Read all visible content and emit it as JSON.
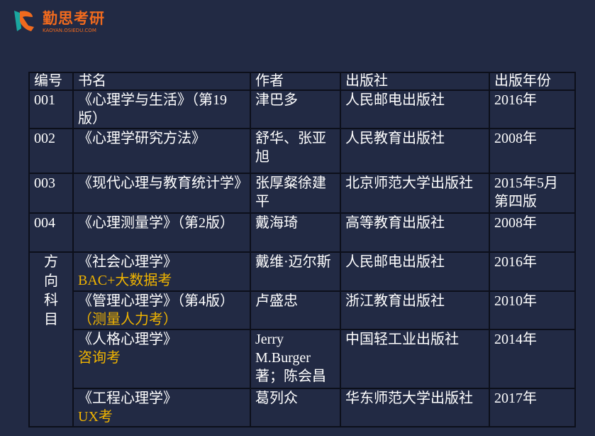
{
  "logo": {
    "name": "勤思考研",
    "url_text": "KAOYAN.OSIEDU.COM"
  },
  "colors": {
    "background": "#222a44",
    "highlight": "#f0b400",
    "logo": "#f06a1e"
  },
  "table": {
    "headers": [
      "编号",
      "书名",
      "作者",
      "出版社",
      "出版年份"
    ],
    "rows": [
      {
        "id": "001",
        "title": "《心理学与生活》（第19版）",
        "note": "",
        "author": "津巴多",
        "publisher": "人民邮电出版社",
        "year": "2016年"
      },
      {
        "id": "002",
        "title": "《心理学研究方法》",
        "note": "",
        "author": "舒华、张亚旭",
        "publisher": "人民教育出版社",
        "year": "2008年"
      },
      {
        "id": "003",
        "title": "《现代心理与教育统计学》",
        "note": "",
        "author": "张厚粲徐建平",
        "publisher": "北京师范大学出版社",
        "year": "2015年5月第四版"
      },
      {
        "id": "004",
        "title": "《心理测量学》（第2版）",
        "note": "",
        "author": "戴海琦",
        "publisher": "高等教育出版社",
        "year": "2008年"
      }
    ],
    "direction_label": "方向科目",
    "direction_rows": [
      {
        "title": "《社会心理学》",
        "note": "BAC+大数据考",
        "author": "戴维·迈尔斯",
        "publisher": "人民邮电出版社",
        "year": "2016年"
      },
      {
        "title": "《管理心理学》（第4版）",
        "note": "（测量人力考）",
        "author": "卢盛忠",
        "publisher": "浙江教育出版社",
        "year": "2010年"
      },
      {
        "title": "《人格心理学》",
        "note": "咨询考",
        "author": "Jerry M.Burger著；陈会昌",
        "publisher": "中国轻工业出版社",
        "year": "2014年"
      },
      {
        "title": "《工程心理学》",
        "note": "UX考",
        "author": "葛列众",
        "publisher": "华东师范大学出版社",
        "year": "2017年"
      }
    ]
  }
}
